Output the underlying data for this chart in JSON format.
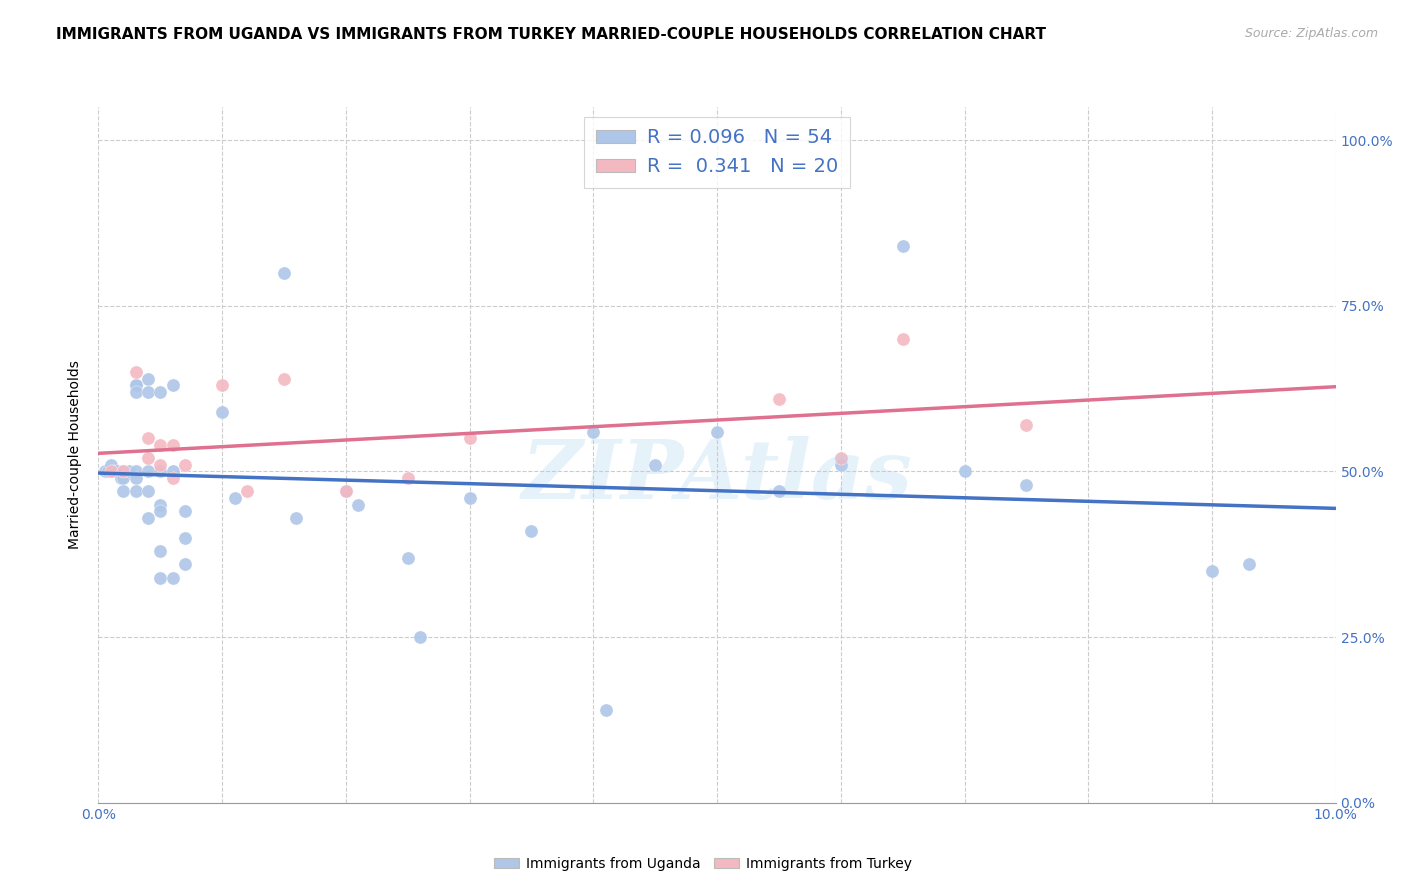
{
  "title": "IMMIGRANTS FROM UGANDA VS IMMIGRANTS FROM TURKEY MARRIED-COUPLE HOUSEHOLDS CORRELATION CHART",
  "source": "Source: ZipAtlas.com",
  "ylabel": "Married-couple Households",
  "xlim": [
    0.0,
    0.1
  ],
  "ylim": [
    0.0,
    1.05
  ],
  "yticks": [
    0.0,
    0.25,
    0.5,
    0.75,
    1.0
  ],
  "ytick_labels_right": [
    "0.0%",
    "25.0%",
    "50.0%",
    "75.0%",
    "100.0%"
  ],
  "xticks": [
    0.0,
    0.01,
    0.02,
    0.03,
    0.04,
    0.05,
    0.06,
    0.07,
    0.08,
    0.09,
    0.1
  ],
  "xtick_labels": [
    "0.0%",
    "",
    "",
    "",
    "",
    "",
    "",
    "",
    "",
    "",
    "10.0%"
  ],
  "uganda_color": "#aec6e8",
  "turkey_color": "#f4b8c1",
  "uganda_line_color": "#4472c4",
  "turkey_line_color": "#e07090",
  "uganda_R": 0.096,
  "uganda_N": 54,
  "turkey_R": 0.341,
  "turkey_N": 20,
  "uganda_x": [
    0.0005,
    0.0008,
    0.001,
    0.0012,
    0.0015,
    0.0018,
    0.002,
    0.002,
    0.002,
    0.0025,
    0.003,
    0.003,
    0.003,
    0.003,
    0.003,
    0.003,
    0.004,
    0.004,
    0.004,
    0.004,
    0.004,
    0.005,
    0.005,
    0.005,
    0.005,
    0.005,
    0.005,
    0.006,
    0.006,
    0.006,
    0.007,
    0.007,
    0.007,
    0.01,
    0.011,
    0.015,
    0.016,
    0.02,
    0.021,
    0.025,
    0.026,
    0.03,
    0.035,
    0.04,
    0.041,
    0.045,
    0.05,
    0.055,
    0.06,
    0.065,
    0.07,
    0.075,
    0.09,
    0.093
  ],
  "uganda_y": [
    0.5,
    0.5,
    0.51,
    0.5,
    0.5,
    0.49,
    0.5,
    0.49,
    0.47,
    0.5,
    0.63,
    0.63,
    0.62,
    0.5,
    0.49,
    0.47,
    0.64,
    0.62,
    0.5,
    0.47,
    0.43,
    0.62,
    0.5,
    0.45,
    0.44,
    0.38,
    0.34,
    0.63,
    0.5,
    0.34,
    0.44,
    0.4,
    0.36,
    0.59,
    0.46,
    0.8,
    0.43,
    0.47,
    0.45,
    0.37,
    0.25,
    0.46,
    0.41,
    0.56,
    0.14,
    0.51,
    0.56,
    0.47,
    0.51,
    0.84,
    0.5,
    0.48,
    0.35,
    0.36
  ],
  "turkey_x": [
    0.001,
    0.002,
    0.003,
    0.004,
    0.004,
    0.005,
    0.005,
    0.006,
    0.006,
    0.007,
    0.01,
    0.012,
    0.015,
    0.02,
    0.025,
    0.03,
    0.055,
    0.06,
    0.065,
    0.075
  ],
  "turkey_y": [
    0.5,
    0.5,
    0.65,
    0.55,
    0.52,
    0.54,
    0.51,
    0.54,
    0.49,
    0.51,
    0.63,
    0.47,
    0.64,
    0.47,
    0.49,
    0.55,
    0.61,
    0.52,
    0.7,
    0.57
  ],
  "watermark": "ZIPAtlas",
  "title_fontsize": 11,
  "axis_label_fontsize": 10,
  "tick_fontsize": 10,
  "legend_fontsize": 14
}
